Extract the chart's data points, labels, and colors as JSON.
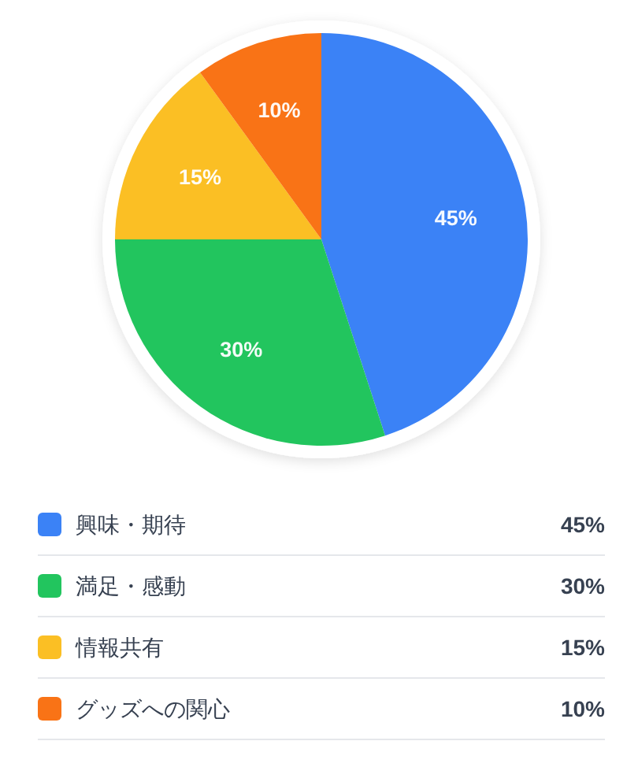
{
  "chart_data": {
    "type": "pie",
    "categories": [
      "興味・期待",
      "満足・感動",
      "情報共有",
      "グッズへの関心"
    ],
    "values": [
      45,
      30,
      15,
      10
    ],
    "colors": [
      "#3b82f6",
      "#22c55e",
      "#fbbf24",
      "#f97316"
    ],
    "value_labels": [
      "45%",
      "30%",
      "15%",
      "10%"
    ],
    "legend": "bottom"
  }
}
